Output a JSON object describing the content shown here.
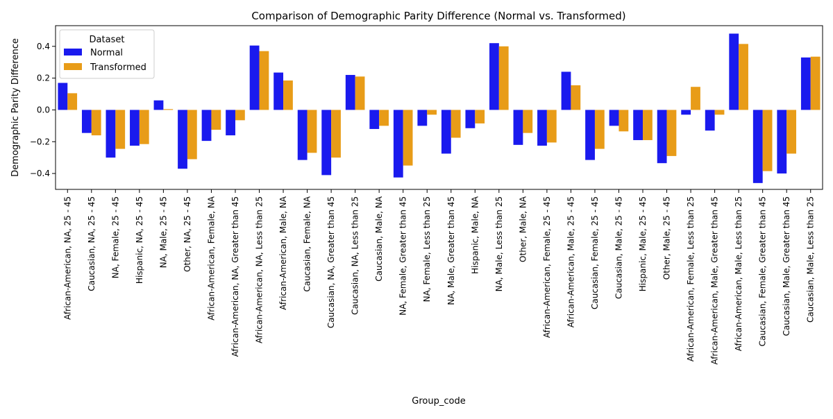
{
  "chart_data": {
    "type": "bar",
    "title": "Comparison of Demographic Parity Difference (Normal vs. Transformed)",
    "xlabel": "Group_code",
    "ylabel": "Demographic Parity Difference",
    "ylim": [
      -0.5,
      0.53
    ],
    "yticks": [
      -0.4,
      -0.2,
      0.0,
      0.2,
      0.4
    ],
    "ytick_labels": [
      "−0.4",
      "−0.2",
      "0.0",
      "0.2",
      "0.4"
    ],
    "grid": false,
    "legend": {
      "title": "Dataset",
      "placement": "top-left"
    },
    "categories": [
      "African-American, NA, 25 - 45",
      "Caucasian, NA, 25 - 45",
      "NA, Female, 25 - 45",
      "Hispanic, NA, 25 - 45",
      "NA, Male, 25 - 45",
      "Other, NA, 25 - 45",
      "African-American, Female, NA",
      "African-American, NA, Greater than 45",
      "African-American, NA, Less than 25",
      "African-American, Male, NA",
      "Caucasian, Female, NA",
      "Caucasian, NA, Greater than 45",
      "Caucasian, NA, Less than 25",
      "Caucasian, Male, NA",
      "NA, Female, Greater than 45",
      "NA, Female, Less than 25",
      "NA, Male, Greater than 45",
      "Hispanic, Male, NA",
      "NA, Male, Less than 25",
      "Other, Male, NA",
      "African-American, Female, 25 - 45",
      "African-American, Male, 25 - 45",
      "Caucasian, Female, 25 - 45",
      "Caucasian, Male, 25 - 45",
      "Hispanic, Male, 25 - 45",
      "Other, Male, 25 - 45",
      "African-American, Female, Less than 25",
      "African-American, Male, Greater than 45",
      "African-American, Male, Less than 25",
      "Caucasian, Female, Greater than 45",
      "Caucasian, Male, Greater than 45",
      "Caucasian, Male, Less than 25"
    ],
    "series": [
      {
        "name": "Normal",
        "color": "#1a1aee",
        "values": [
          0.17,
          -0.145,
          -0.3,
          -0.225,
          0.06,
          -0.37,
          -0.195,
          -0.16,
          0.405,
          0.235,
          -0.315,
          -0.41,
          0.22,
          -0.12,
          -0.425,
          -0.1,
          -0.275,
          -0.115,
          0.42,
          -0.22,
          -0.225,
          0.24,
          -0.315,
          -0.1,
          -0.19,
          -0.335,
          -0.03,
          -0.13,
          0.48,
          -0.46,
          -0.4,
          0.33
        ]
      },
      {
        "name": "Transformed",
        "color": "#e89c18",
        "values": [
          0.105,
          -0.16,
          -0.245,
          -0.215,
          0.005,
          -0.31,
          -0.125,
          -0.065,
          0.37,
          0.185,
          -0.27,
          -0.3,
          0.21,
          -0.1,
          -0.35,
          -0.03,
          -0.175,
          -0.085,
          0.4,
          -0.145,
          -0.205,
          0.155,
          -0.245,
          -0.135,
          -0.19,
          -0.29,
          0.145,
          -0.03,
          0.415,
          -0.385,
          -0.275,
          0.335
        ]
      }
    ]
  }
}
